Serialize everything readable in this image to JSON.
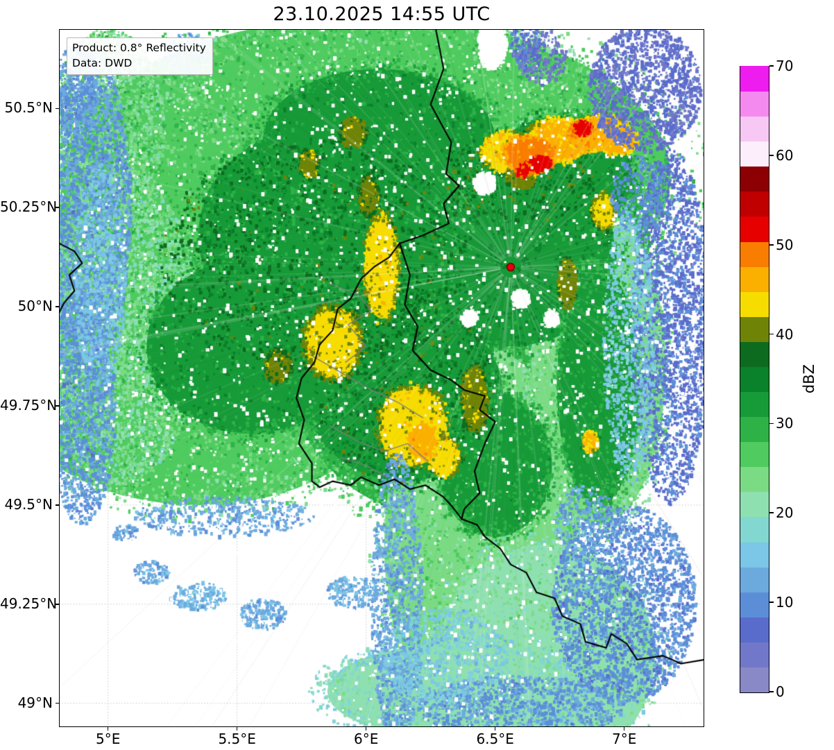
{
  "title": "23.10.2025 14:55 UTC",
  "info_box": {
    "product": "Product: 0.8° Reflectivity",
    "source": "Data: DWD"
  },
  "colorbar": {
    "label": "dBZ",
    "min": 0,
    "max": 70,
    "ticks": [
      0,
      10,
      20,
      30,
      40,
      50,
      60,
      70
    ],
    "colors": [
      "#8889c6",
      "#7178c9",
      "#5a6ccb",
      "#5c8ed8",
      "#6caade",
      "#7cc6e8",
      "#82d7d0",
      "#8fe0b0",
      "#7bdb84",
      "#4fcb5f",
      "#2eb248",
      "#179a38",
      "#0a812b",
      "#0c6b1f",
      "#6f8407",
      "#f7dc00",
      "#fbb000",
      "#f97d00",
      "#e60000",
      "#c00000",
      "#8c0004",
      "#fdeefb",
      "#f8c8f5",
      "#f48af0",
      "#ee1cee"
    ]
  },
  "map": {
    "extent": {
      "lon_min": 4.81,
      "lon_max": 7.31,
      "lat_min": 48.94,
      "lat_max": 50.7
    },
    "x_ticks": [
      {
        "v": 5.0,
        "label": "5°E"
      },
      {
        "v": 5.5,
        "label": "5.5°E"
      },
      {
        "v": 6.0,
        "label": "6°E"
      },
      {
        "v": 6.5,
        "label": "6.5°E"
      },
      {
        "v": 7.0,
        "label": "7°E"
      }
    ],
    "y_ticks": [
      {
        "v": 50.5,
        "label": "50.5°N"
      },
      {
        "v": 50.25,
        "label": "50.25°N"
      },
      {
        "v": 50.0,
        "label": "50°N"
      },
      {
        "v": 49.75,
        "label": "49.75°N"
      },
      {
        "v": 49.5,
        "label": "49.5°N"
      },
      {
        "v": 49.25,
        "label": "49.25°N"
      },
      {
        "v": 49.0,
        "label": "49°N"
      }
    ],
    "radar_site": {
      "lon": 6.56,
      "lat": 50.1,
      "fill": "#e8000b",
      "edge": "#700000"
    },
    "grid_color": "#c8c8c8",
    "border_color_country": "#000000",
    "border_color_admin": "#7d7d7d",
    "borders_country": [
      [
        [
          6.27,
          50.7
        ],
        [
          6.3,
          50.6
        ],
        [
          6.25,
          50.51
        ],
        [
          6.33,
          50.415
        ],
        [
          6.31,
          50.335
        ],
        [
          6.36,
          50.305
        ],
        [
          6.3,
          50.26
        ],
        [
          6.32,
          50.21
        ],
        [
          6.22,
          50.18
        ],
        [
          6.13,
          50.16
        ]
      ],
      [
        [
          6.13,
          50.16
        ],
        [
          6.17,
          50.08
        ],
        [
          6.15,
          50.005
        ],
        [
          6.2,
          49.95
        ],
        [
          6.18,
          49.89
        ],
        [
          6.25,
          49.84
        ],
        [
          6.33,
          49.815
        ],
        [
          6.38,
          49.79
        ],
        [
          6.46,
          49.775
        ],
        [
          6.44,
          49.74
        ],
        [
          6.5,
          49.71
        ],
        [
          6.46,
          49.655
        ],
        [
          6.42,
          49.585
        ],
        [
          6.44,
          49.53
        ],
        [
          6.38,
          49.49
        ],
        [
          6.37,
          49.465
        ]
      ],
      [
        [
          6.13,
          50.16
        ],
        [
          6.09,
          50.125
        ],
        [
          6.03,
          50.1
        ],
        [
          5.98,
          50.07
        ],
        [
          5.94,
          50.02
        ],
        [
          5.89,
          49.995
        ],
        [
          5.87,
          49.94
        ],
        [
          5.82,
          49.905
        ],
        [
          5.8,
          49.86
        ],
        [
          5.75,
          49.82
        ],
        [
          5.73,
          49.77
        ],
        [
          5.76,
          49.715
        ],
        [
          5.74,
          49.655
        ],
        [
          5.79,
          49.605
        ],
        [
          5.79,
          49.56
        ],
        [
          5.82,
          49.545
        ]
      ],
      [
        [
          5.82,
          49.545
        ],
        [
          5.87,
          49.56
        ],
        [
          5.94,
          49.55
        ],
        [
          5.98,
          49.57
        ],
        [
          6.05,
          49.55
        ],
        [
          6.11,
          49.565
        ],
        [
          6.17,
          49.54
        ],
        [
          6.23,
          49.55
        ],
        [
          6.3,
          49.52
        ],
        [
          6.335,
          49.495
        ],
        [
          6.37,
          49.465
        ]
      ],
      [
        [
          6.37,
          49.465
        ],
        [
          6.43,
          49.45
        ],
        [
          6.46,
          49.42
        ],
        [
          6.52,
          49.39
        ],
        [
          6.56,
          49.35
        ],
        [
          6.62,
          49.33
        ],
        [
          6.66,
          49.28
        ],
        [
          6.73,
          49.265
        ],
        [
          6.76,
          49.22
        ],
        [
          6.83,
          49.2
        ],
        [
          6.85,
          49.155
        ],
        [
          6.93,
          49.14
        ],
        [
          6.95,
          49.175
        ],
        [
          7.01,
          49.15
        ],
        [
          7.05,
          49.11
        ],
        [
          7.15,
          49.12
        ],
        [
          7.22,
          49.1
        ],
        [
          7.31,
          49.11
        ]
      ],
      [
        [
          4.81,
          50.16
        ],
        [
          4.87,
          50.14
        ],
        [
          4.9,
          50.11
        ],
        [
          4.85,
          50.08
        ],
        [
          4.87,
          50.04
        ],
        [
          4.83,
          50.01
        ],
        [
          4.81,
          49.985
        ]
      ]
    ],
    "borders_admin": [
      [
        [
          5.85,
          50.06
        ],
        [
          5.97,
          50.03
        ],
        [
          6.02,
          49.99
        ],
        [
          5.93,
          49.955
        ],
        [
          6.0,
          49.9
        ],
        [
          5.92,
          49.86
        ]
      ],
      [
        [
          5.78,
          49.88
        ],
        [
          5.9,
          49.835
        ],
        [
          6.02,
          49.79
        ],
        [
          6.12,
          49.76
        ],
        [
          6.22,
          49.72
        ]
      ],
      [
        [
          5.86,
          49.7
        ],
        [
          5.97,
          49.66
        ],
        [
          6.07,
          49.635
        ],
        [
          6.16,
          49.655
        ],
        [
          6.24,
          49.61
        ]
      ],
      [
        [
          5.9,
          49.62
        ],
        [
          6.0,
          49.6
        ],
        [
          6.08,
          49.57
        ]
      ]
    ],
    "echo_regions": [
      {
        "lon": 6.0,
        "lat": 50.33,
        "rlon": 1.18,
        "rlat": 0.4,
        "dbz": 27
      },
      {
        "lon": 5.55,
        "lat": 50.05,
        "rlon": 0.95,
        "rlat": 0.33,
        "dbz": 27
      },
      {
        "lon": 5.35,
        "lat": 49.78,
        "rlon": 0.72,
        "rlat": 0.28,
        "dbz": 26
      },
      {
        "lon": 6.3,
        "lat": 49.85,
        "rlon": 0.6,
        "rlat": 0.38,
        "dbz": 28
      },
      {
        "lon": 6.6,
        "lat": 50.18,
        "rlon": 0.5,
        "rlat": 0.33,
        "dbz": 29
      },
      {
        "lon": 6.05,
        "lat": 50.55,
        "rlon": 0.75,
        "rlat": 0.17,
        "dbz": 26
      },
      {
        "lon": 6.45,
        "lat": 49.4,
        "rlon": 0.38,
        "rlat": 0.5,
        "dbz": 24
      },
      {
        "lon": 6.7,
        "lat": 49.12,
        "rlon": 0.42,
        "rlat": 0.28,
        "dbz": 22
      },
      {
        "lon": 6.9,
        "lat": 49.85,
        "rlon": 0.26,
        "rlat": 0.4,
        "dbz": 24
      },
      {
        "lon": 6.35,
        "lat": 49.03,
        "rlon": 0.5,
        "rlat": 0.12,
        "dbz": 20
      },
      {
        "lon": 5.05,
        "lat": 49.95,
        "rlon": 0.3,
        "rlat": 0.4,
        "dbz": 23,
        "mode": "speckle",
        "cov": 0.85,
        "jitter": 4
      },
      {
        "lon": 5.0,
        "lat": 50.45,
        "rlon": 0.22,
        "rlat": 0.25,
        "dbz": 24,
        "mode": "speckle",
        "cov": 0.8,
        "jitter": 4
      },
      {
        "lon": 6.55,
        "lat": 50.12,
        "rlon": 0.42,
        "rlat": 0.22,
        "dbz": 33,
        "jitter": 2
      },
      {
        "lon": 5.85,
        "lat": 50.18,
        "rlon": 0.5,
        "rlat": 0.28,
        "dbz": 32,
        "jitter": 2
      },
      {
        "lon": 6.15,
        "lat": 49.78,
        "rlon": 0.38,
        "rlat": 0.22,
        "dbz": 33,
        "jitter": 2
      },
      {
        "lon": 5.55,
        "lat": 49.9,
        "rlon": 0.4,
        "rlat": 0.22,
        "dbz": 32,
        "jitter": 2
      },
      {
        "lon": 6.75,
        "lat": 50.33,
        "rlon": 0.28,
        "rlat": 0.15,
        "dbz": 33,
        "jitter": 2
      },
      {
        "lon": 6.05,
        "lat": 50.42,
        "rlon": 0.45,
        "rlat": 0.18,
        "dbz": 32,
        "jitter": 2
      },
      {
        "lon": 6.9,
        "lat": 49.8,
        "rlon": 0.16,
        "rlat": 0.3,
        "dbz": 31,
        "jitter": 2
      },
      {
        "lon": 6.5,
        "lat": 49.6,
        "rlon": 0.22,
        "rlat": 0.18,
        "dbz": 31,
        "jitter": 2
      },
      {
        "lon": 5.8,
        "lat": 50.12,
        "rlon": 0.6,
        "rlat": 0.3,
        "dbz": 37,
        "mode": "speckle",
        "cov": 0.12,
        "jitter": 2
      },
      {
        "lon": 6.15,
        "lat": 49.8,
        "rlon": 0.35,
        "rlat": 0.25,
        "dbz": 37,
        "mode": "speckle",
        "cov": 0.12,
        "jitter": 2
      },
      {
        "lon": 6.6,
        "lat": 50.33,
        "rlon": 0.3,
        "rlat": 0.12,
        "dbz": 38,
        "mode": "speckle",
        "cov": 0.15,
        "jitter": 2
      },
      {
        "lon": 6.06,
        "lat": 50.1,
        "rlon": 0.065,
        "rlat": 0.13,
        "dbz": 43,
        "jitter": 2
      },
      {
        "lon": 5.87,
        "lat": 49.91,
        "rlon": 0.11,
        "rlat": 0.09,
        "dbz": 42,
        "jitter": 2
      },
      {
        "lon": 6.18,
        "lat": 49.7,
        "rlon": 0.13,
        "rlat": 0.1,
        "dbz": 43,
        "jitter": 2
      },
      {
        "lon": 6.42,
        "lat": 49.77,
        "rlon": 0.05,
        "rlat": 0.08,
        "dbz": 41,
        "jitter": 2
      },
      {
        "lon": 5.95,
        "lat": 50.44,
        "rlon": 0.05,
        "rlat": 0.035,
        "dbz": 41,
        "jitter": 2
      },
      {
        "lon": 5.78,
        "lat": 50.36,
        "rlon": 0.035,
        "rlat": 0.035,
        "dbz": 41,
        "jitter": 2
      },
      {
        "lon": 6.01,
        "lat": 50.28,
        "rlon": 0.035,
        "rlat": 0.05,
        "dbz": 40,
        "jitter": 2
      },
      {
        "lon": 6.92,
        "lat": 50.24,
        "rlon": 0.045,
        "rlat": 0.045,
        "dbz": 42,
        "jitter": 2
      },
      {
        "lon": 6.78,
        "lat": 50.06,
        "rlon": 0.035,
        "rlat": 0.06,
        "dbz": 41,
        "jitter": 2
      },
      {
        "lon": 6.87,
        "lat": 49.66,
        "rlon": 0.028,
        "rlat": 0.025,
        "dbz": 45,
        "jitter": 2
      },
      {
        "lon": 5.66,
        "lat": 49.85,
        "rlon": 0.05,
        "rlat": 0.04,
        "dbz": 40,
        "jitter": 2
      },
      {
        "lon": 6.3,
        "lat": 49.62,
        "rlon": 0.06,
        "rlat": 0.05,
        "dbz": 43,
        "jitter": 2
      },
      {
        "lon": 6.55,
        "lat": 50.39,
        "rlon": 0.1,
        "rlat": 0.05,
        "dbz": 44,
        "jitter": 2
      },
      {
        "lon": 6.75,
        "lat": 50.42,
        "rlon": 0.12,
        "rlat": 0.055,
        "dbz": 45,
        "jitter": 2
      },
      {
        "lon": 6.92,
        "lat": 50.44,
        "rlon": 0.1,
        "rlat": 0.045,
        "dbz": 44,
        "jitter": 2
      },
      {
        "lon": 6.6,
        "lat": 50.33,
        "rlon": 0.06,
        "rlat": 0.03,
        "dbz": 41,
        "jitter": 2
      },
      {
        "lon": 6.63,
        "lat": 50.385,
        "rlon": 0.1,
        "rlat": 0.045,
        "dbz": 48,
        "jitter": 1.5
      },
      {
        "lon": 6.88,
        "lat": 50.435,
        "rlon": 0.11,
        "rlat": 0.04,
        "dbz": 47,
        "jitter": 1.5
      },
      {
        "lon": 6.22,
        "lat": 49.66,
        "rlon": 0.055,
        "rlat": 0.045,
        "dbz": 46,
        "jitter": 1.5
      },
      {
        "lon": 6.98,
        "lat": 50.42,
        "rlon": 0.07,
        "rlat": 0.035,
        "dbz": 46,
        "jitter": 1.5
      },
      {
        "lon": 6.67,
        "lat": 50.36,
        "rlon": 0.05,
        "rlat": 0.02,
        "dbz": 52,
        "jitter": 1
      },
      {
        "lon": 6.84,
        "lat": 50.45,
        "rlon": 0.035,
        "rlat": 0.018,
        "dbz": 52,
        "jitter": 1
      },
      {
        "lon": 6.61,
        "lat": 50.345,
        "rlon": 0.03,
        "rlat": 0.018,
        "dbz": 51,
        "jitter": 1
      },
      {
        "lon": 4.93,
        "lat": 50.25,
        "rlon": 0.16,
        "rlat": 0.4,
        "dbz": 11,
        "mode": "speckle",
        "cov": 0.7,
        "jitter": 2
      },
      {
        "lon": 4.9,
        "lat": 49.75,
        "rlon": 0.13,
        "rlat": 0.3,
        "dbz": 11,
        "mode": "speckle",
        "cov": 0.7,
        "jitter": 2
      },
      {
        "lon": 7.08,
        "lat": 50.55,
        "rlon": 0.22,
        "rlat": 0.16,
        "dbz": 6,
        "mode": "speckle",
        "cov": 0.75,
        "jitter": 2
      },
      {
        "lon": 7.18,
        "lat": 49.95,
        "rlon": 0.15,
        "rlat": 0.45,
        "dbz": 8,
        "mode": "speckle",
        "cov": 0.65,
        "jitter": 2
      },
      {
        "lon": 7.0,
        "lat": 49.25,
        "rlon": 0.28,
        "rlat": 0.25,
        "dbz": 10,
        "mode": "speckle",
        "cov": 0.65,
        "jitter": 2
      },
      {
        "lon": 6.12,
        "lat": 49.25,
        "rlon": 0.1,
        "rlat": 0.38,
        "dbz": 12,
        "mode": "speckle",
        "cov": 0.6,
        "jitter": 2
      },
      {
        "lon": 6.6,
        "lat": 48.99,
        "rlon": 0.4,
        "rlat": 0.08,
        "dbz": 11,
        "mode": "speckle",
        "cov": 0.6,
        "jitter": 2
      },
      {
        "lon": 5.35,
        "lat": 49.27,
        "rlon": 0.11,
        "rlat": 0.035,
        "dbz": 14,
        "mode": "speckle",
        "cov": 0.9,
        "jitter": 2
      },
      {
        "lon": 5.6,
        "lat": 49.225,
        "rlon": 0.09,
        "rlat": 0.04,
        "dbz": 13,
        "mode": "speckle",
        "cov": 0.9,
        "jitter": 2
      },
      {
        "lon": 5.17,
        "lat": 49.33,
        "rlon": 0.07,
        "rlat": 0.028,
        "dbz": 13,
        "mode": "speckle",
        "cov": 0.9,
        "jitter": 2
      },
      {
        "lon": 6.68,
        "lat": 50.63,
        "rlon": 0.1,
        "rlat": 0.07,
        "dbz": 5,
        "mode": "speckle",
        "cov": 0.6,
        "jitter": 2
      },
      {
        "lon": 7.05,
        "lat": 50.28,
        "rlon": 0.1,
        "rlat": 0.1,
        "dbz": 10,
        "mode": "speckle",
        "cov": 0.5,
        "jitter": 2
      },
      {
        "lon": 6.85,
        "lat": 49.45,
        "rlon": 0.12,
        "rlat": 0.1,
        "dbz": 12,
        "mode": "speckle",
        "cov": 0.4,
        "jitter": 2
      },
      {
        "lon": 4.88,
        "lat": 50.55,
        "rlon": 0.08,
        "rlat": 0.12,
        "dbz": 11,
        "mode": "speckle",
        "cov": 0.6,
        "jitter": 2
      },
      {
        "lon": 5.3,
        "lat": 50.64,
        "rlon": 0.09,
        "rlat": 0.05,
        "dbz": 12,
        "mode": "speckle",
        "cov": 0.6,
        "jitter": 2
      },
      {
        "lon": 5.45,
        "lat": 49.47,
        "rlon": 0.35,
        "rlat": 0.05,
        "dbz": 12,
        "mode": "speckle",
        "cov": 0.45,
        "jitter": 2
      },
      {
        "lon": 5.95,
        "lat": 49.28,
        "rlon": 0.1,
        "rlat": 0.04,
        "dbz": 13,
        "mode": "speckle",
        "cov": 0.9,
        "jitter": 2
      },
      {
        "lon": 5.07,
        "lat": 49.43,
        "rlon": 0.05,
        "rlat": 0.02,
        "dbz": 12,
        "mode": "speckle",
        "cov": 0.9,
        "jitter": 2
      },
      {
        "lon": 6.62,
        "lat": 50.66,
        "rlon": 0.06,
        "rlat": 0.06,
        "dbz": 8,
        "mode": "speckle",
        "cov": 0.6,
        "jitter": 2
      },
      {
        "lon": 7.02,
        "lat": 49.9,
        "rlon": 0.1,
        "rlat": 0.35,
        "dbz": 16,
        "mode": "speckle",
        "cov": 0.5,
        "jitter": 2
      },
      {
        "lon": 6.3,
        "lat": 49.12,
        "rlon": 0.25,
        "rlat": 0.12,
        "dbz": 16,
        "mode": "speckle",
        "cov": 0.4,
        "jitter": 2
      },
      {
        "lon": 4.97,
        "lat": 50.08,
        "rlon": 0.1,
        "rlat": 0.28,
        "dbz": 15,
        "mode": "speckle",
        "cov": 0.5,
        "jitter": 2
      },
      {
        "lon": 6.05,
        "lat": 49.82,
        "rlon": 1.25,
        "rlat": 0.92,
        "color": "#ffffff",
        "mode": "speckle",
        "cov": 0.035
      },
      {
        "lon": 6.46,
        "lat": 50.31,
        "rlon": 0.04,
        "rlat": 0.025,
        "color": "#ffffff"
      },
      {
        "lon": 6.6,
        "lat": 50.02,
        "rlon": 0.03,
        "rlat": 0.02,
        "color": "#ffffff"
      },
      {
        "lon": 6.72,
        "lat": 49.97,
        "rlon": 0.025,
        "rlat": 0.018,
        "color": "#ffffff"
      },
      {
        "lon": 6.4,
        "lat": 49.97,
        "rlon": 0.028,
        "rlat": 0.018,
        "color": "#ffffff"
      },
      {
        "lon": 6.49,
        "lat": 50.66,
        "rlon": 0.05,
        "rlat": 0.06,
        "color": "#ffffff"
      }
    ]
  }
}
